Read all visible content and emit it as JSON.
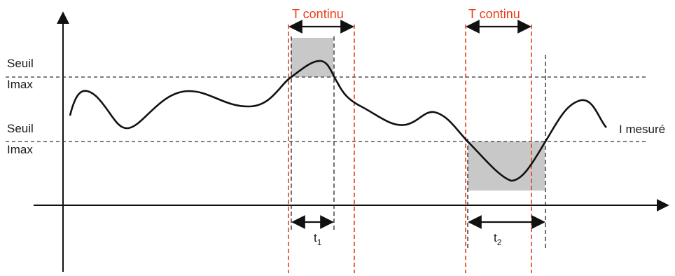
{
  "labels": {
    "threshold_upper_line1": "Seuil",
    "threshold_upper_line2": "Imax",
    "threshold_lower_line1": "Seuil",
    "threshold_lower_line2": "Imax",
    "measured_current": "I mesuré",
    "t_continu_1": "T continu",
    "t_continu_2": "T continu",
    "t1_main": "t",
    "t1_sub": "1",
    "t2_main": "t",
    "t2_sub": "2"
  },
  "colors": {
    "accent_orange": "#e8401c",
    "shade_gray": "#c8c8c8",
    "line": "#111111"
  }
}
